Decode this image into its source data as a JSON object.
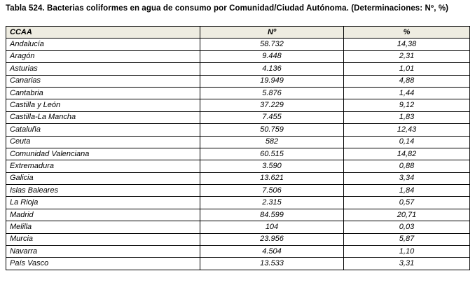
{
  "page": {
    "title": "Tabla 524. Bacterias coliformes en agua de consumo por Comunidad/Ciudad Autónoma. (Determinaciones: Nº, %)"
  },
  "colors": {
    "header_bg": "#EEECE1",
    "border": "#000000",
    "text": "#000000",
    "page_bg": "#FFFFFF"
  },
  "table": {
    "headers": [
      "CCAA",
      "Nº",
      "%"
    ],
    "rows": [
      [
        "Andalucía",
        "58.732",
        "14,38"
      ],
      [
        "Aragón",
        "9.448",
        "2,31"
      ],
      [
        "Asturias",
        "4.136",
        "1,01"
      ],
      [
        "Canarias",
        "19.949",
        "4,88"
      ],
      [
        "Cantabria",
        "5.876",
        "1,44"
      ],
      [
        "Castilla y León",
        "37.229",
        "9,12"
      ],
      [
        "Castilla-La Mancha",
        "7.455",
        "1,83"
      ],
      [
        "Cataluña",
        "50.759",
        "12,43"
      ],
      [
        "Ceuta",
        "582",
        "0,14"
      ],
      [
        "Comunidad Valenciana",
        "60.515",
        "14,82"
      ],
      [
        "Extremadura",
        "3.590",
        "0,88"
      ],
      [
        "Galicia",
        "13.621",
        "3,34"
      ],
      [
        "Islas Baleares",
        "7.506",
        "1,84"
      ],
      [
        "La Rioja",
        "2.315",
        "0,57"
      ],
      [
        "Madrid",
        "84.599",
        "20,71"
      ],
      [
        "Melilla",
        "104",
        "0,03"
      ],
      [
        "Murcia",
        "23.956",
        "5,87"
      ],
      [
        "Navarra",
        "4.504",
        "1,10"
      ],
      [
        "País Vasco",
        "13.533",
        "3,31"
      ]
    ]
  }
}
